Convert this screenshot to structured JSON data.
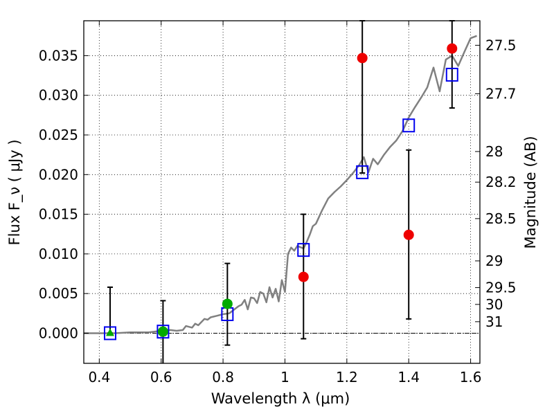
{
  "chart_data": {
    "type": "scatter",
    "title": "",
    "xlabel_text": "Wavelength  λ (μm)",
    "ylabel_text": "Flux  F_ν  ( μJy )",
    "y2label_text": "Magnitude (AB)",
    "xlim": [
      0.35,
      1.63
    ],
    "ylim": [
      -0.0038,
      0.0394
    ],
    "grid": true,
    "x_ticks": [
      0.4,
      0.6,
      0.8,
      1.0,
      1.2,
      1.4,
      1.6
    ],
    "x_tick_labels": [
      "0.4",
      "0.6",
      "0.8",
      "1",
      "1.2",
      "1.4",
      "1.6"
    ],
    "y_ticks": [
      0.0,
      0.005,
      0.01,
      0.015,
      0.02,
      0.025,
      0.03,
      0.035
    ],
    "y_tick_labels": [
      "0.000",
      "0.005",
      "0.010",
      "0.015",
      "0.020",
      "0.025",
      "0.030",
      "0.035"
    ],
    "mag_ticks": [
      {
        "label": "27.5",
        "flux": 0.03631
      },
      {
        "label": "27.7",
        "flux": 0.0302
      },
      {
        "label": "28",
        "flux": 0.02291
      },
      {
        "label": "28.2",
        "flux": 0.01905
      },
      {
        "label": "28.5",
        "flux": 0.01445
      },
      {
        "label": "29",
        "flux": 0.00912
      },
      {
        "label": "29.5",
        "flux": 0.00575
      },
      {
        "label": "30",
        "flux": 0.00363
      },
      {
        "label": "31",
        "flux": 0.00145
      }
    ],
    "model_color": "#808080",
    "model_curve": {
      "x": [
        0.35,
        0.4,
        0.45,
        0.5,
        0.53,
        0.56,
        0.6,
        0.63,
        0.65,
        0.67,
        0.68,
        0.7,
        0.71,
        0.72,
        0.74,
        0.75,
        0.76,
        0.78,
        0.8,
        0.82,
        0.84,
        0.85,
        0.86,
        0.87,
        0.88,
        0.89,
        0.9,
        0.91,
        0.92,
        0.93,
        0.94,
        0.95,
        0.96,
        0.97,
        0.98,
        0.99,
        1.0,
        1.01,
        1.02,
        1.03,
        1.04,
        1.06,
        1.07,
        1.08,
        1.09,
        1.1,
        1.12,
        1.14,
        1.16,
        1.18,
        1.2,
        1.22,
        1.24,
        1.255,
        1.27,
        1.285,
        1.3,
        1.32,
        1.34,
        1.36,
        1.38,
        1.4,
        1.42,
        1.44,
        1.46,
        1.48,
        1.5,
        1.52,
        1.54,
        1.56,
        1.58,
        1.6,
        1.62
      ],
      "y": [
        0.0,
        0.0,
        0.0,
        0.0001,
        0.0001,
        0.0001,
        0.0003,
        0.0004,
        0.0003,
        0.0004,
        0.0009,
        0.0007,
        0.0012,
        0.001,
        0.0018,
        0.0017,
        0.002,
        0.0022,
        0.0024,
        0.0025,
        0.0031,
        0.0034,
        0.0036,
        0.0042,
        0.003,
        0.0045,
        0.0044,
        0.0038,
        0.0052,
        0.005,
        0.0039,
        0.0058,
        0.0045,
        0.0056,
        0.004,
        0.0067,
        0.0052,
        0.01,
        0.0108,
        0.0104,
        0.011,
        0.0107,
        0.0115,
        0.0124,
        0.0135,
        0.0138,
        0.0155,
        0.017,
        0.0178,
        0.0185,
        0.0193,
        0.0202,
        0.0212,
        0.0222,
        0.0203,
        0.022,
        0.0213,
        0.0225,
        0.0235,
        0.0243,
        0.0255,
        0.0272,
        0.0285,
        0.0297,
        0.031,
        0.0335,
        0.0305,
        0.0345,
        0.035,
        0.0337,
        0.0355,
        0.0372,
        0.0375
      ]
    },
    "series": [
      {
        "name": "model-photometry",
        "marker": "square",
        "color": "#0000ee",
        "x": [
          0.435,
          0.606,
          0.814,
          1.06,
          1.25,
          1.4,
          1.54
        ],
        "y": [
          0.0,
          0.0002,
          0.0024,
          0.0105,
          0.0203,
          0.0262,
          0.0326
        ]
      },
      {
        "name": "green-detections",
        "marker": "circle",
        "color": "#00aa00",
        "x": [
          0.606,
          0.814
        ],
        "y": [
          0.0002,
          0.0037
        ],
        "yerr_low": [
          -0.004,
          -0.0015
        ],
        "yerr_high": [
          0.0041,
          0.0088
        ]
      },
      {
        "name": "green-upper",
        "marker": "triangle",
        "color": "#00aa00",
        "x": [
          0.435
        ],
        "y": [
          0.0
        ],
        "yerr_low": [
          0.0
        ],
        "yerr_high": [
          0.0058
        ]
      },
      {
        "name": "red-detections",
        "marker": "circle",
        "color": "#ee0000",
        "x": [
          1.06,
          1.25,
          1.4,
          1.54
        ],
        "y": [
          0.0071,
          0.0347,
          0.0124,
          0.0359
        ],
        "yerr_low": [
          -0.0007,
          0.0202,
          0.0018,
          0.0284
        ],
        "yerr_high": [
          0.015,
          0.0394,
          0.0231,
          0.0394
        ]
      }
    ],
    "zero_line": 0.0
  }
}
